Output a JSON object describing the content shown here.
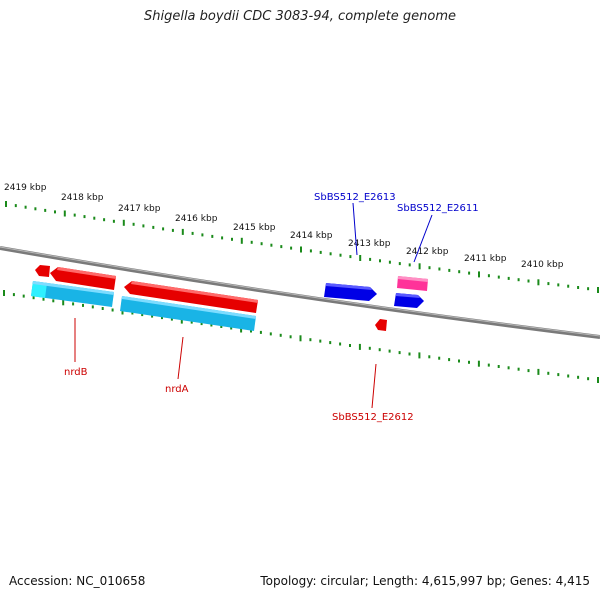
{
  "title": "Shigella boydii CDC 3083-94, complete genome",
  "footer": {
    "accession": "Accession: NC_010658",
    "summary": "Topology: circular; Length: 4,615,997 bp; Genes: 4,415"
  },
  "colors": {
    "backbone": "#808080",
    "tick": "#1a8a1a",
    "forward_gene": "#ff0000",
    "forward_cds": "#0000e6",
    "pseudo_gene": "#ff3399",
    "reverse_cds": "#19b4e6",
    "label_forward": "#0000cc",
    "label_reverse": "#cc0000"
  },
  "scale_labels": [
    "2419 kbp",
    "2418 kbp",
    "2417 kbp",
    "2416 kbp",
    "2415 kbp",
    "2414 kbp",
    "2413 kbp",
    "2412 kbp",
    "2411 kbp",
    "2410 kbp"
  ],
  "gene_labels": [
    {
      "id": "nrdB",
      "text": "nrdB",
      "strand": "reverse"
    },
    {
      "id": "nrdA",
      "text": "nrdA",
      "strand": "reverse"
    },
    {
      "id": "SbBS512_E2612",
      "text": "SbBS512_E2612",
      "strand": "reverse"
    },
    {
      "id": "SbBS512_E2613",
      "text": "SbBS512_E2613",
      "strand": "forward"
    },
    {
      "id": "SbBS512_E2611",
      "text": "SbBS512_E2611",
      "strand": "forward"
    }
  ]
}
